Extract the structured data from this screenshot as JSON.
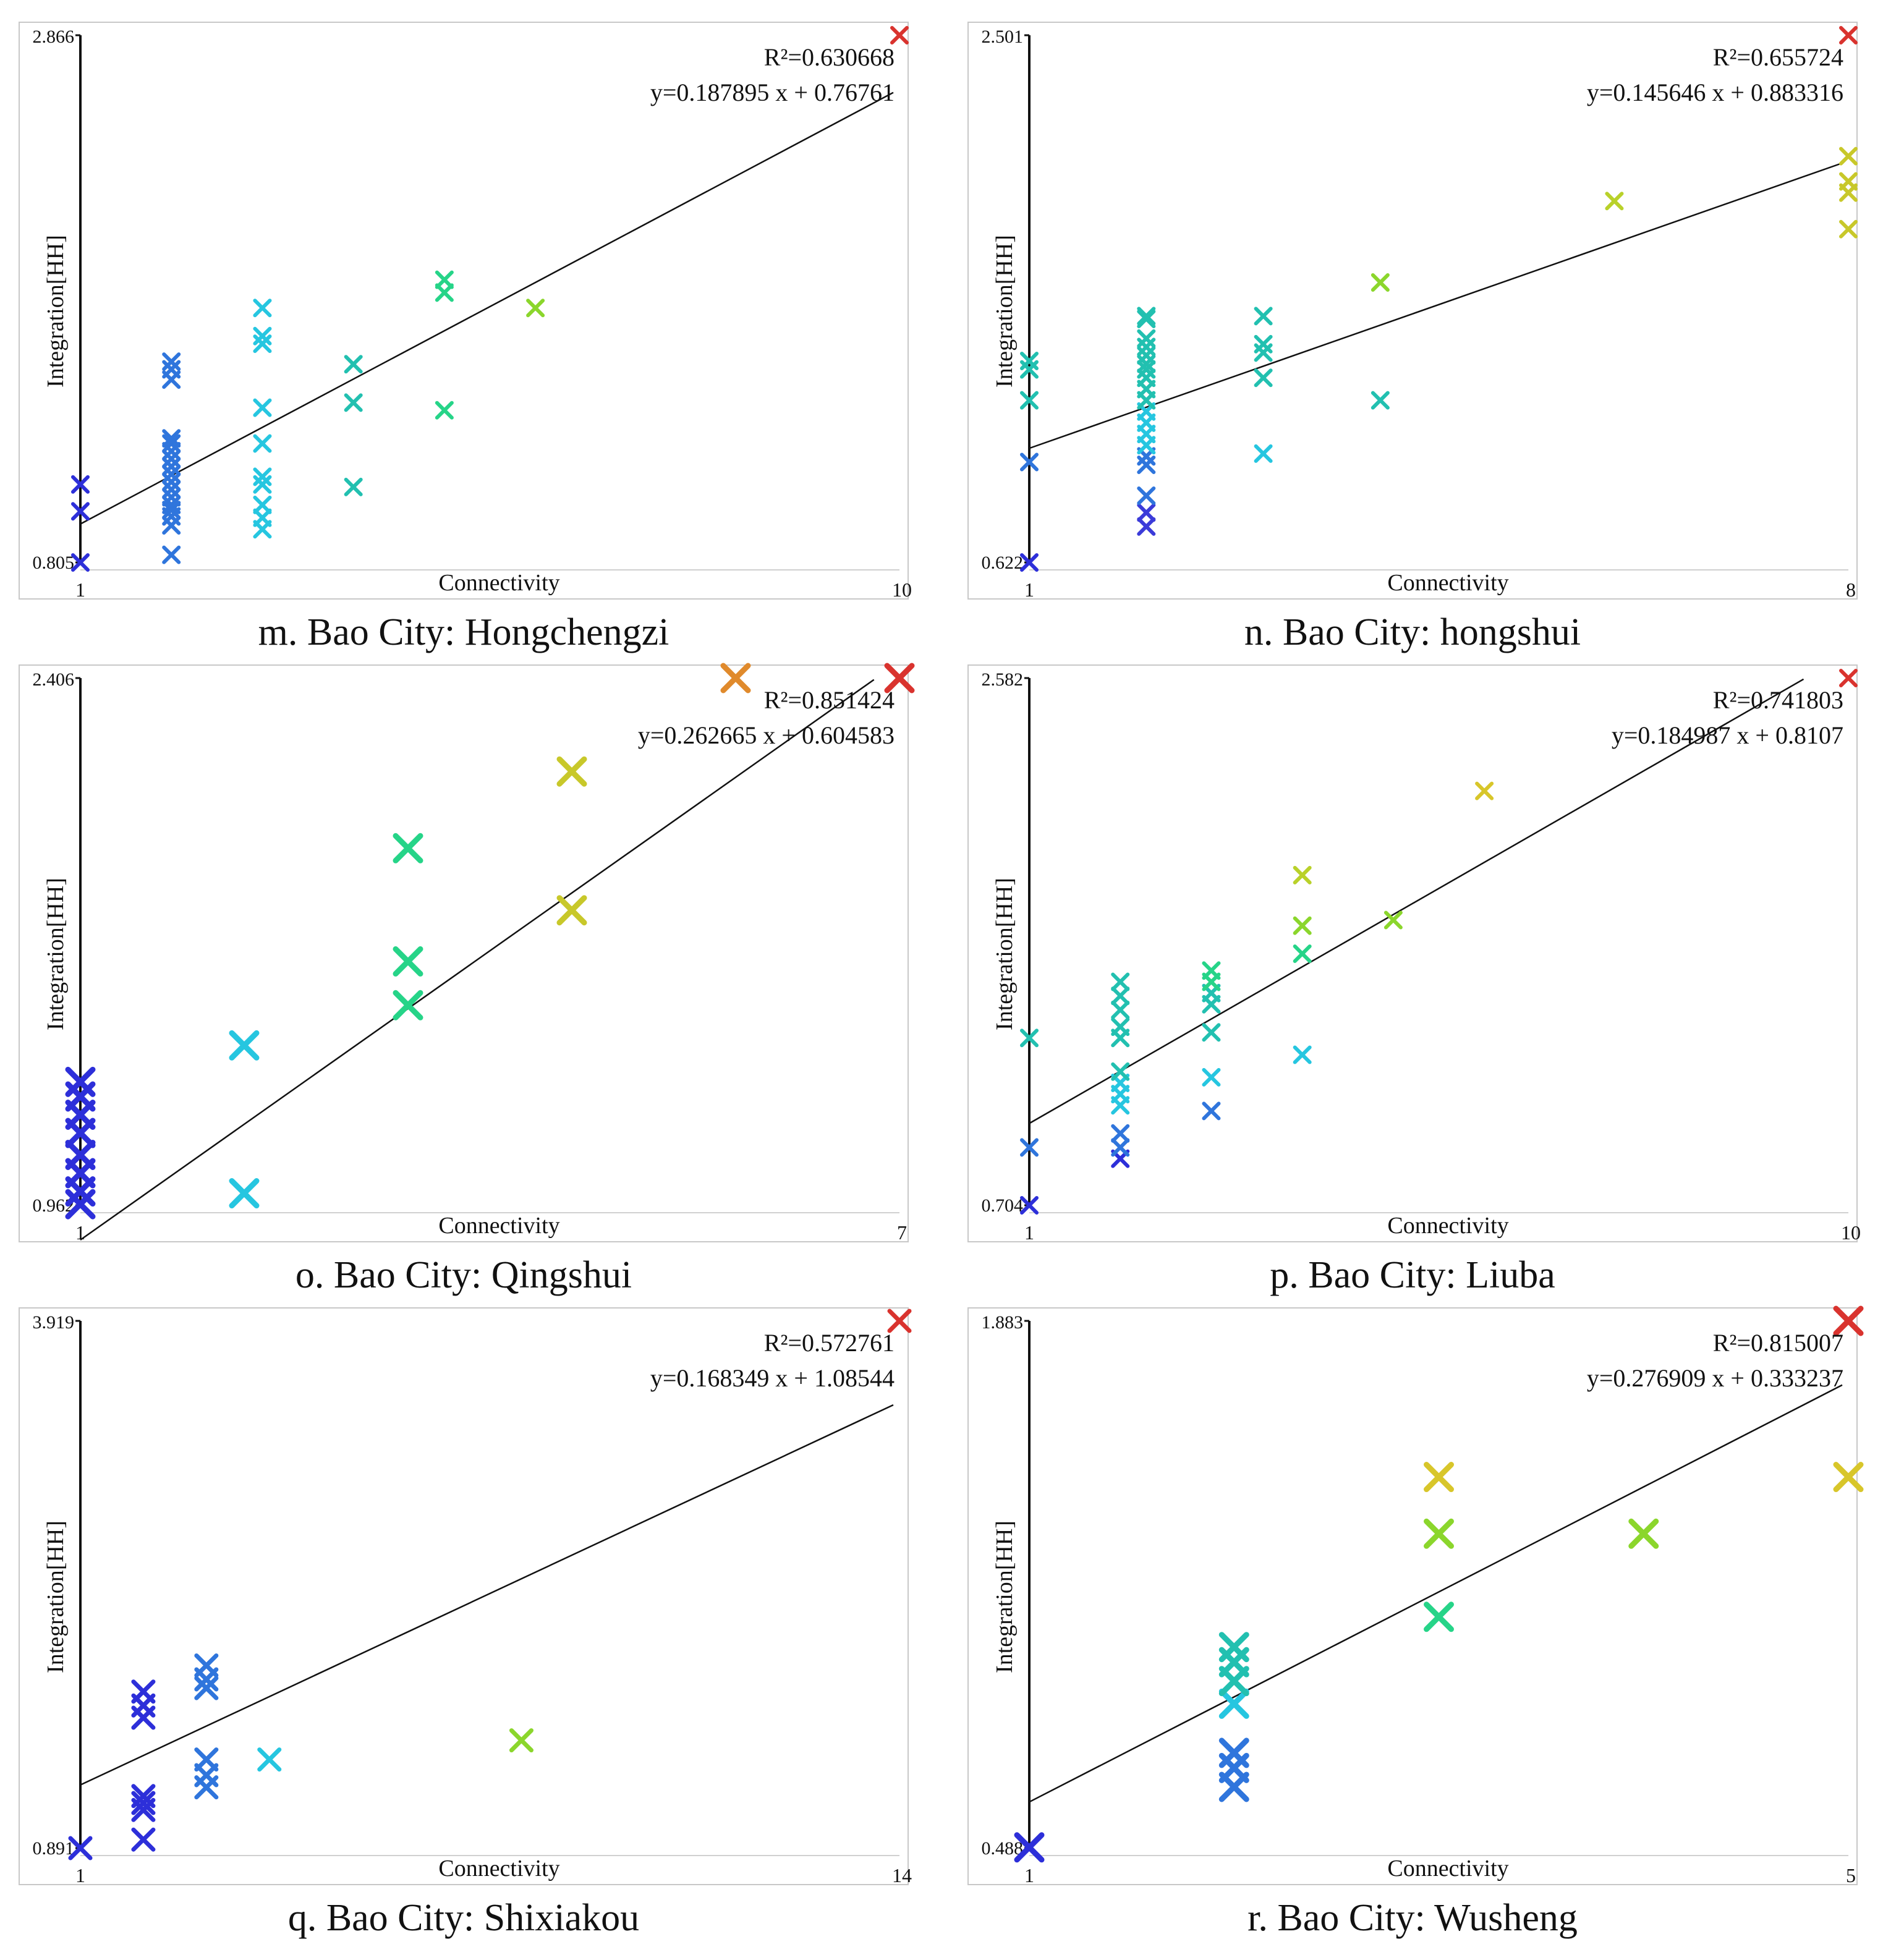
{
  "chart_data": [
    {
      "id": "m",
      "type": "scatter",
      "title": "m. Bao City: Hongchengzi",
      "xlabel": "Connectivity",
      "ylabel": "Integration[HH]",
      "xlim": [
        1,
        10
      ],
      "ylim": [
        0.805,
        2.866
      ],
      "x_ticks": [
        "1",
        "10"
      ],
      "y_ticks": [
        "0.805",
        "2.866"
      ],
      "r2_label": "R²=0.630668",
      "equation": "y=0.187895 x + 0.76761",
      "fit": {
        "slope": 0.187895,
        "intercept": 0.76761
      },
      "points": [
        [
          1,
          0.805
        ],
        [
          1,
          1.005
        ],
        [
          1,
          1.11
        ],
        [
          2,
          0.835
        ],
        [
          2,
          0.95
        ],
        [
          2,
          0.985
        ],
        [
          2,
          1.01
        ],
        [
          2,
          1.03
        ],
        [
          2,
          1.06
        ],
        [
          2,
          1.09
        ],
        [
          2,
          1.12
        ],
        [
          2,
          1.15
        ],
        [
          2,
          1.18
        ],
        [
          2,
          1.21
        ],
        [
          2,
          1.24
        ],
        [
          2,
          1.27
        ],
        [
          2,
          1.29
        ],
        [
          2,
          1.52
        ],
        [
          2,
          1.56
        ],
        [
          2,
          1.59
        ],
        [
          3,
          0.935
        ],
        [
          3,
          0.98
        ],
        [
          3,
          1.03
        ],
        [
          3,
          1.11
        ],
        [
          3,
          1.14
        ],
        [
          3,
          1.27
        ],
        [
          3,
          1.41
        ],
        [
          3,
          1.66
        ],
        [
          3,
          1.69
        ],
        [
          3,
          1.8
        ],
        [
          4,
          1.1
        ],
        [
          4,
          1.43
        ],
        [
          4,
          1.58
        ],
        [
          5,
          1.4
        ],
        [
          5,
          1.86
        ],
        [
          5,
          1.91
        ],
        [
          6,
          1.8
        ],
        [
          10,
          2.866
        ]
      ],
      "point_colors": [
        "#2d2fd9",
        "#2d2fd9",
        "#2d2fd9",
        "#2f75dc",
        "#2f75dc",
        "#2f75dc",
        "#2f75dc",
        "#2f75dc",
        "#2f75dc",
        "#2f75dc",
        "#2f75dc",
        "#2f75dc",
        "#2f75dc",
        "#2f75dc",
        "#2f75dc",
        "#2f75dc",
        "#2f75dc",
        "#2f75dc",
        "#2f75dc",
        "#2f75dc",
        "#26c6e0",
        "#26c6e0",
        "#26c6e0",
        "#26c6e0",
        "#26c6e0",
        "#26c6e0",
        "#26c6e0",
        "#26c6e0",
        "#26c6e0",
        "#26c6e0",
        "#22c0b0",
        "#22c0b0",
        "#22c0b0",
        "#26d488",
        "#26d488",
        "#26d488",
        "#8bd62c",
        "#d9332e"
      ]
    },
    {
      "id": "n",
      "type": "scatter",
      "title": "n. Bao City: hongshui",
      "xlabel": "Connectivity",
      "ylabel": "Integration[HH]",
      "xlim": [
        1,
        8
      ],
      "ylim": [
        0.622,
        2.501
      ],
      "x_ticks": [
        "1",
        "8"
      ],
      "y_ticks": [
        "0.622",
        "2.501"
      ],
      "r2_label": "R²=0.655724",
      "equation": "y=0.145646 x + 0.883316",
      "fit": {
        "slope": 0.145646,
        "intercept": 0.883316
      },
      "points": [
        [
          1,
          0.622
        ],
        [
          1,
          0.98
        ],
        [
          1,
          1.2
        ],
        [
          1,
          1.31
        ],
        [
          1,
          1.34
        ],
        [
          2,
          0.75
        ],
        [
          2,
          0.8
        ],
        [
          2,
          0.86
        ],
        [
          2,
          0.97
        ],
        [
          2,
          1.0
        ],
        [
          2,
          1.04
        ],
        [
          2,
          1.08
        ],
        [
          2,
          1.12
        ],
        [
          2,
          1.16
        ],
        [
          2,
          1.2
        ],
        [
          2,
          1.24
        ],
        [
          2,
          1.28
        ],
        [
          2,
          1.31
        ],
        [
          2,
          1.33
        ],
        [
          2,
          1.36
        ],
        [
          2,
          1.39
        ],
        [
          2,
          1.42
        ],
        [
          2,
          1.49
        ],
        [
          2,
          1.5
        ],
        [
          3,
          1.01
        ],
        [
          3,
          1.28
        ],
        [
          3,
          1.37
        ],
        [
          3,
          1.4
        ],
        [
          3,
          1.5
        ],
        [
          4,
          1.2
        ],
        [
          4,
          1.62
        ],
        [
          6,
          1.91
        ],
        [
          8,
          1.81
        ],
        [
          8,
          1.94
        ],
        [
          8,
          1.98
        ],
        [
          8,
          2.07
        ],
        [
          8,
          2.501
        ]
      ],
      "point_colors": [
        "#2d2fd9",
        "#2f75dc",
        "#22c0b0",
        "#22c0b0",
        "#22c0b0",
        "#3b3bd9",
        "#3b3bd9",
        "#2f75dc",
        "#2f75dc",
        "#2f75dc",
        "#26c6e0",
        "#26c6e0",
        "#26c6e0",
        "#26c6e0",
        "#22c0b0",
        "#22c0b0",
        "#22c0b0",
        "#22c0b0",
        "#22c0b0",
        "#22c0b0",
        "#22c0b0",
        "#22c0b0",
        "#22c0b0",
        "#22c0b0",
        "#26c6e0",
        "#22c0b0",
        "#22c0b0",
        "#22c0b0",
        "#22c0b0",
        "#22c0b0",
        "#8bd62c",
        "#b9d12a",
        "#c8c82a",
        "#c8c82a",
        "#c8c82a",
        "#c8c82a",
        "#d9332e"
      ]
    },
    {
      "id": "o",
      "type": "scatter",
      "title": "o. Bao City: Qingshui",
      "xlabel": "Connectivity",
      "ylabel": "Integration[HH]",
      "xlim": [
        1,
        7
      ],
      "ylim": [
        0.962,
        2.406
      ],
      "x_ticks": [
        "1",
        "7"
      ],
      "y_ticks": [
        "0.962",
        "2.406"
      ],
      "r2_label": "R²=0.851424",
      "equation": "y=0.262665 x + 0.604583",
      "fit": {
        "slope": 0.262665,
        "intercept": 0.604583
      },
      "points": [
        [
          1,
          0.965
        ],
        [
          1,
          1.0
        ],
        [
          1,
          1.05
        ],
        [
          1,
          1.1
        ],
        [
          1,
          1.16
        ],
        [
          1,
          1.21
        ],
        [
          1,
          1.26
        ],
        [
          1,
          1.3
        ],
        [
          2.2,
          0.995
        ],
        [
          2.2,
          1.4
        ],
        [
          3.4,
          1.51
        ],
        [
          3.4,
          1.63
        ],
        [
          3.4,
          1.94
        ],
        [
          4.6,
          1.77
        ],
        [
          4.6,
          2.15
        ],
        [
          5.8,
          2.406
        ],
        [
          7,
          2.406
        ]
      ],
      "point_colors": [
        "#2d2fd9",
        "#2d2fd9",
        "#2d2fd9",
        "#2d2fd9",
        "#2d2fd9",
        "#2d2fd9",
        "#2d2fd9",
        "#2d2fd9",
        "#26c6e0",
        "#26c6e0",
        "#26d488",
        "#26d488",
        "#26d488",
        "#c8c82a",
        "#c8c82a",
        "#e08a2c",
        "#d9332e"
      ]
    },
    {
      "id": "p",
      "type": "scatter",
      "title": "p. Bao City: Liuba",
      "xlabel": "Connectivity",
      "ylabel": "Integration[HH]",
      "xlim": [
        1,
        10
      ],
      "ylim": [
        0.704,
        2.582
      ],
      "x_ticks": [
        "1",
        "10"
      ],
      "y_ticks": [
        "0.704",
        "2.582"
      ],
      "r2_label": "R²=0.741803",
      "equation": "y=0.184987 x + 0.8107",
      "fit": {
        "slope": 0.184987,
        "intercept": 0.8107
      },
      "points": [
        [
          1,
          0.704
        ],
        [
          1,
          0.91
        ],
        [
          1,
          1.3
        ],
        [
          2,
          0.87
        ],
        [
          2,
          0.91
        ],
        [
          2,
          0.96
        ],
        [
          2,
          1.06
        ],
        [
          2,
          1.1
        ],
        [
          2,
          1.14
        ],
        [
          2,
          1.18
        ],
        [
          2,
          1.3
        ],
        [
          2,
          1.34
        ],
        [
          2,
          1.4
        ],
        [
          2,
          1.45
        ],
        [
          2,
          1.5
        ],
        [
          3,
          1.04
        ],
        [
          3,
          1.16
        ],
        [
          3,
          1.32
        ],
        [
          3,
          1.42
        ],
        [
          3,
          1.46
        ],
        [
          3,
          1.5
        ],
        [
          3,
          1.54
        ],
        [
          4,
          1.24
        ],
        [
          4,
          1.6
        ],
        [
          4,
          1.7
        ],
        [
          4,
          1.88
        ],
        [
          5,
          1.72
        ],
        [
          6,
          2.18
        ],
        [
          10,
          2.582
        ]
      ],
      "point_colors": [
        "#2d2fd9",
        "#2f75dc",
        "#22c0b0",
        "#2d2fd9",
        "#2f75dc",
        "#2f75dc",
        "#26c6e0",
        "#26c6e0",
        "#26c6e0",
        "#22c0b0",
        "#22c0b0",
        "#22c0b0",
        "#22c0b0",
        "#22c0b0",
        "#22c0b0",
        "#2f75dc",
        "#26c6e0",
        "#22c0b0",
        "#22c0b0",
        "#22c0b0",
        "#26d488",
        "#26d488",
        "#26c6e0",
        "#26d488",
        "#8bd62c",
        "#b9d12a",
        "#8bd62c",
        "#d8c62a",
        "#d9332e"
      ]
    },
    {
      "id": "q",
      "type": "scatter",
      "title": "q. Bao City: Shixiakou",
      "xlabel": "Connectivity",
      "ylabel": "Integration[HH]",
      "xlim": [
        1,
        14
      ],
      "ylim": [
        0.891,
        3.919
      ],
      "x_ticks": [
        "1",
        "14"
      ],
      "y_ticks": [
        "0.891",
        "3.919"
      ],
      "r2_label": "R²=0.572761",
      "equation": "y=0.168349 x + 1.08544",
      "fit": {
        "slope": 0.168349,
        "intercept": 1.08544
      },
      "points": [
        [
          1,
          0.891
        ],
        [
          2,
          0.94
        ],
        [
          2,
          1.11
        ],
        [
          2,
          1.15
        ],
        [
          2,
          1.19
        ],
        [
          2,
          1.64
        ],
        [
          2,
          1.71
        ],
        [
          2,
          1.79
        ],
        [
          3,
          1.24
        ],
        [
          3,
          1.31
        ],
        [
          3,
          1.4
        ],
        [
          3,
          1.81
        ],
        [
          3,
          1.86
        ],
        [
          3,
          1.94
        ],
        [
          4,
          1.4
        ],
        [
          8,
          1.51
        ],
        [
          14,
          3.919
        ]
      ],
      "point_colors": [
        "#2d2fd9",
        "#2d2fd9",
        "#2d2fd9",
        "#2d2fd9",
        "#2d2fd9",
        "#2d2fd9",
        "#2d2fd9",
        "#2d2fd9",
        "#2f75dc",
        "#2f75dc",
        "#2f75dc",
        "#2f75dc",
        "#2f75dc",
        "#2f75dc",
        "#26c6e0",
        "#8bd62c",
        "#d9332e"
      ]
    },
    {
      "id": "r",
      "type": "scatter",
      "title": "r. Bao City: Wusheng",
      "xlabel": "Connectivity",
      "ylabel": "Integration[HH]",
      "xlim": [
        1,
        5
      ],
      "ylim": [
        0.488,
        1.883
      ],
      "x_ticks": [
        "1",
        "5"
      ],
      "y_ticks": [
        "0.488",
        "1.883"
      ],
      "r2_label": "R²=0.815007",
      "equation": "y=0.276909 x + 0.333237",
      "fit": {
        "slope": 0.276909,
        "intercept": 0.333237
      },
      "points": [
        [
          1,
          0.49
        ],
        [
          2,
          0.65
        ],
        [
          2,
          0.7
        ],
        [
          2,
          0.74
        ],
        [
          2,
          0.87
        ],
        [
          2,
          0.93
        ],
        [
          2,
          0.98
        ],
        [
          2,
          1.02
        ],
        [
          3,
          1.1
        ],
        [
          3,
          1.32
        ],
        [
          3,
          1.47
        ],
        [
          4,
          1.32
        ],
        [
          5,
          1.47
        ],
        [
          5,
          1.883
        ]
      ],
      "point_colors": [
        "#2d2fd9",
        "#2f75dc",
        "#2f75dc",
        "#2f75dc",
        "#26c6e0",
        "#22c0b0",
        "#22c0b0",
        "#22c0b0",
        "#26d488",
        "#8bd62c",
        "#d8c62a",
        "#8bd62c",
        "#d8c62a",
        "#d9332e"
      ]
    }
  ]
}
